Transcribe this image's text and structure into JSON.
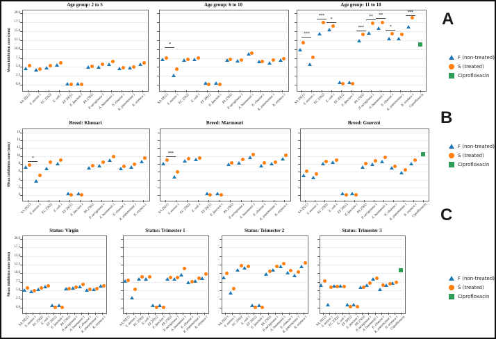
{
  "figure": {
    "section_labels": [
      "A",
      "B",
      "C"
    ],
    "legend": {
      "items": [
        {
          "label": "F (non-treated)",
          "marker": "triangle",
          "color": "#1f77b4"
        },
        {
          "label": "S (treated)",
          "marker": "circle",
          "color": "#ff7f0e"
        },
        {
          "label": "Ciprofloxacin",
          "marker": "square",
          "color": "#2e9e57"
        }
      ]
    },
    "ylabel": "Mean inhibition zone (mm)",
    "categories": [
      "SA 29213",
      "S. aureus 1",
      "EC 25922",
      "E. coli 1",
      "EF 29212",
      "E. faecium 1",
      "PA 27853",
      "P. aeruginosa 1",
      "A. baumannii 1",
      "E. cloacae 1",
      "K. pneumoniae 1",
      "K. oxytoca 1"
    ],
    "categories_italic": [
      0,
      1,
      0,
      1,
      0,
      1,
      0,
      1,
      1,
      1,
      1,
      1
    ],
    "ciprofloxacin_category": "Ciprofloxacin",
    "rows": {
      "A": {
        "ytick_values": [
          0,
          2.5,
          5,
          7.5,
          10,
          12.5,
          15,
          17.5,
          20
        ],
        "ytick_labels": [
          "0.0",
          "2.5",
          "5.0",
          "7.5",
          "10.0",
          "12.5",
          "15.0",
          "17.5",
          "20.0"
        ],
        "ylim": [
          0,
          20
        ]
      },
      "B": {
        "ytick_values": [
          0,
          2,
          4,
          6,
          8,
          10,
          12,
          14,
          16
        ],
        "ytick_labels": [
          "0",
          "2",
          "4",
          "6",
          "8",
          "10",
          "12",
          "14",
          "16"
        ],
        "ylim": [
          0,
          16
        ]
      },
      "C": {
        "ytick_values": [
          0,
          2.5,
          5,
          7.5,
          10,
          12.5,
          15,
          17.5,
          20
        ],
        "ytick_labels": [
          "0.0",
          "2.5",
          "5.0",
          "7.5",
          "10.0",
          "12.5",
          "15.0",
          "17.5",
          "20.0"
        ],
        "ylim": [
          0,
          20
        ]
      }
    }
  },
  "chart_data": [
    {
      "type": "scatter",
      "row": "A",
      "title": "Age group: 2 to 5",
      "series": [
        {
          "name": "F (non-treated)",
          "values": [
            4.4,
            3.9,
            4.6,
            5.3,
            0.1,
            0.1,
            4.8,
            4.8,
            5.5,
            4.3,
            4.5,
            5.5
          ]
        },
        {
          "name": "S (treated)",
          "values": [
            5.4,
            4.4,
            5.4,
            6.1,
            0.1,
            0.1,
            5.1,
            5.7,
            6.5,
            4.9,
            5.0,
            6.2
          ]
        }
      ],
      "ciprofloxacin": null,
      "annotations": []
    },
    {
      "type": "scatter",
      "row": "A",
      "title": "Age group: 6 to 10",
      "series": [
        {
          "name": "F (non-treated)",
          "values": [
            6.9,
            2.4,
            6.7,
            6.9,
            0.2,
            0.2,
            6.6,
            6.4,
            8.3,
            6.2,
            5.8,
            6.7
          ]
        },
        {
          "name": "S (treated)",
          "values": [
            7.5,
            4.5,
            7.2,
            7.5,
            0.2,
            0.2,
            7.2,
            7.0,
            8.9,
            6.5,
            6.9,
            7.3
          ]
        }
      ],
      "ciprofloxacin": null,
      "annotations": [
        {
          "x": 0.5,
          "text": "*",
          "y": 10.5
        }
      ]
    },
    {
      "type": "scatter",
      "row": "A",
      "title": "Age group: 11 to 18",
      "series": [
        {
          "name": "F (non-treated)",
          "values": [
            9.6,
            5.5,
            14.1,
            15.1,
            0.4,
            0.4,
            12.0,
            14.3,
            15.5,
            12.6,
            12.7,
            15.9
          ]
        },
        {
          "name": "S (treated)",
          "values": [
            11.7,
            7.8,
            17.4,
            16.5,
            0.4,
            0.4,
            14.1,
            17.2,
            17.5,
            14.3,
            14.1,
            18.7
          ]
        }
      ],
      "ciprofloxacin": 11.3,
      "annotations": [
        {
          "x": 0.5,
          "text": "***",
          "y": 13.4
        },
        {
          "x": 2,
          "text": "***",
          "y": 18.5
        },
        {
          "x": 3,
          "text": "*",
          "y": 17.6
        },
        {
          "x": 6,
          "text": "***",
          "y": 15.2
        },
        {
          "x": 7,
          "text": "**",
          "y": 18.3
        },
        {
          "x": 8,
          "text": "**",
          "y": 18.6
        },
        {
          "x": 9,
          "text": "*",
          "y": 15.3
        },
        {
          "x": 11,
          "text": "***",
          "y": 19.5
        }
      ]
    },
    {
      "type": "scatter",
      "row": "B",
      "title": "Breed: Khouari",
      "series": [
        {
          "name": "F (non-treated)",
          "values": [
            7.0,
            3.4,
            6.6,
            7.9,
            0.3,
            0.3,
            6.8,
            7.3,
            8.7,
            6.6,
            6.9,
            8.4
          ]
        },
        {
          "name": "S (treated)",
          "values": [
            7.7,
            5.0,
            8.5,
            8.9,
            0.1,
            0.1,
            7.5,
            8.4,
            9.9,
            7.4,
            7.9,
            9.5
          ]
        }
      ],
      "ciprofloxacin": null,
      "annotations": [
        {
          "x": 0.5,
          "text": "*",
          "y": 8.7
        }
      ]
    },
    {
      "type": "scatter",
      "row": "B",
      "title": "Breed: Marmouri",
      "series": [
        {
          "name": "F (non-treated)",
          "values": [
            7.8,
            4.4,
            8.6,
            8.8,
            0.2,
            0.3,
            7.6,
            8.0,
            9.4,
            7.2,
            7.8,
            9.0
          ]
        },
        {
          "name": "S (treated)",
          "values": [
            8.9,
            5.9,
            9.4,
            9.5,
            0.1,
            0.1,
            8.3,
            9.2,
            10.3,
            8.2,
            8.5,
            10.2
          ]
        }
      ],
      "ciprofloxacin": null,
      "annotations": [
        {
          "x": 0.5,
          "text": "***",
          "y": 9.9
        }
      ]
    },
    {
      "type": "scatter",
      "row": "B",
      "title": "Breed: Guerzni",
      "series": [
        {
          "name": "F (non-treated)",
          "values": [
            4.8,
            4.3,
            7.8,
            8.2,
            0.3,
            0.3,
            6.9,
            7.7,
            8.3,
            6.7,
            5.6,
            7.9
          ]
        },
        {
          "name": "S (treated)",
          "values": [
            6.2,
            5.5,
            8.6,
            8.9,
            0.1,
            0.1,
            8.0,
            8.8,
            9.7,
            7.4,
            6.5,
            9.0
          ]
        }
      ],
      "ciprofloxacin": 10.5,
      "annotations": []
    },
    {
      "type": "scatter",
      "row": "C",
      "title": "Status: Virgin",
      "series": [
        {
          "name": "F (non-treated)",
          "values": [
            4.8,
            4.4,
            5.0,
            5.7,
            0.3,
            0.3,
            5.1,
            5.3,
            5.8,
            4.7,
            4.9,
            5.9
          ]
        },
        {
          "name": "S (treated)",
          "values": [
            5.6,
            4.8,
            5.6,
            6.3,
            0.1,
            0.1,
            5.5,
            6.0,
            6.8,
            5.3,
            5.5,
            6.4
          ]
        }
      ],
      "ciprofloxacin": null,
      "annotations": []
    },
    {
      "type": "scatter",
      "row": "C",
      "title": "Status: Trimester 1",
      "series": [
        {
          "name": "F (non-treated)",
          "values": [
            7.4,
            2.5,
            8.1,
            8.0,
            0.3,
            0.3,
            8.1,
            8.1,
            9.3,
            7.1,
            7.4,
            8.2
          ]
        },
        {
          "name": "S (treated)",
          "values": [
            8.0,
            5.3,
            8.9,
            8.9,
            0.1,
            0.1,
            8.8,
            8.8,
            11.3,
            7.6,
            8.5,
            9.8
          ]
        }
      ],
      "ciprofloxacin": null,
      "annotations": []
    },
    {
      "type": "scatter",
      "row": "C",
      "title": "Status: Trimester 2",
      "series": [
        {
          "name": "F (non-treated)",
          "values": [
            8.5,
            4.0,
            10.6,
            11.3,
            0.3,
            0.3,
            9.4,
            10.7,
            11.7,
            9.8,
            9.1,
            11.7
          ]
        },
        {
          "name": "S (treated)",
          "values": [
            10.0,
            5.5,
            12.1,
            11.9,
            0.1,
            0.1,
            10.5,
            12.0,
            12.7,
            10.8,
            10.3,
            13.0
          ]
        }
      ],
      "ciprofloxacin": null,
      "annotations": []
    },
    {
      "type": "scatter",
      "row": "C",
      "title": "Status: Trimester 3",
      "series": [
        {
          "name": "F (non-treated)",
          "values": [
            6.3,
            0.5,
            6.0,
            6.1,
            0.5,
            0.5,
            5.6,
            6.2,
            8.0,
            4.9,
            6.3,
            6.9
          ]
        },
        {
          "name": "S (treated)",
          "values": [
            7.8,
            6.0,
            6.2,
            6.2,
            0.2,
            0.2,
            5.8,
            7.2,
            8.6,
            6.6,
            7.0,
            7.3
          ]
        }
      ],
      "ciprofloxacin": 10.8,
      "annotations": []
    }
  ]
}
